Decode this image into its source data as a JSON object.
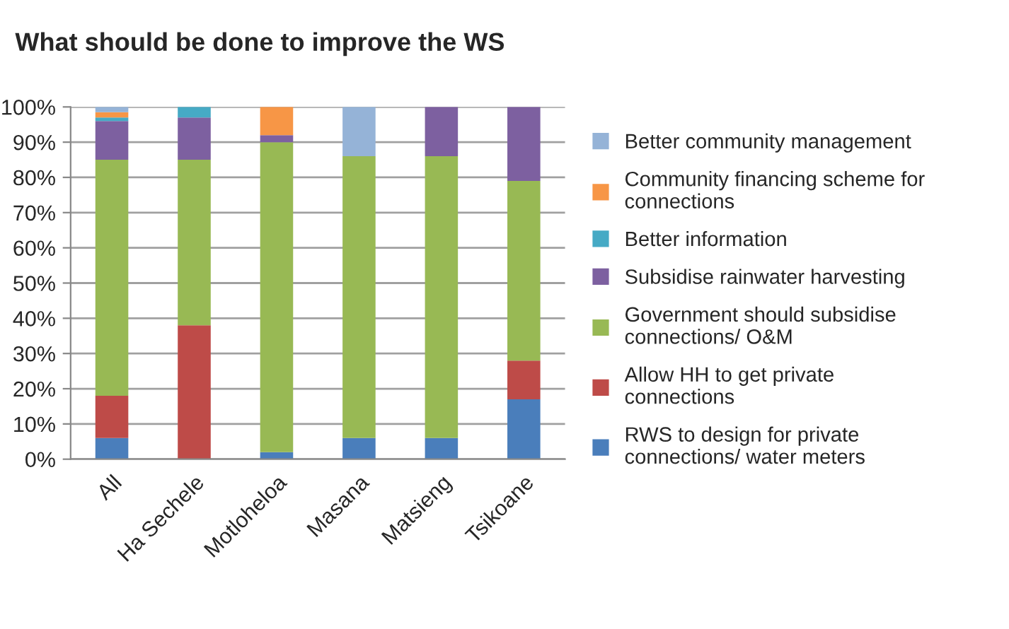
{
  "chart_data": {
    "type": "bar",
    "stacked": true,
    "title": "What should be done to improve the WS",
    "categories": [
      "All",
      "Ha Sechele",
      "Motloheloa",
      "Masana",
      "Matsieng",
      "Tsikoane"
    ],
    "series": [
      {
        "name": "RWS to design for private connections/ water meters",
        "color": "#4a7ebb",
        "values": [
          6,
          0,
          2,
          6,
          6,
          17
        ]
      },
      {
        "name": "Allow HH to get private connections",
        "color": "#be4b48",
        "values": [
          12,
          38,
          0,
          0,
          0,
          11
        ]
      },
      {
        "name": "Government should subsidise connections/ O&M",
        "color": "#98b954",
        "values": [
          67,
          47,
          88,
          80,
          80,
          51
        ]
      },
      {
        "name": "Subsidise rainwater harvesting",
        "color": "#7d60a0",
        "values": [
          11,
          12,
          2,
          0,
          14,
          21
        ]
      },
      {
        "name": "Better information",
        "color": "#46aac5",
        "values": [
          1,
          3,
          0,
          0,
          0,
          0
        ]
      },
      {
        "name": "Community financing scheme for connections",
        "color": "#f79646",
        "values": [
          1.5,
          0,
          8,
          0,
          0,
          0
        ]
      },
      {
        "name": "Better community management",
        "color": "#95b3d7",
        "values": [
          1.5,
          0,
          0,
          14,
          0,
          0
        ]
      }
    ],
    "ylim": [
      0,
      100
    ],
    "yticks": [
      {
        "value": 0,
        "label": "0%"
      },
      {
        "value": 10,
        "label": "10%"
      },
      {
        "value": 20,
        "label": "20%"
      },
      {
        "value": 30,
        "label": "30%"
      },
      {
        "value": 40,
        "label": "40%"
      },
      {
        "value": 50,
        "label": "50%"
      },
      {
        "value": 60,
        "label": "60%"
      },
      {
        "value": 70,
        "label": "70%"
      },
      {
        "value": 80,
        "label": "80%"
      },
      {
        "value": 90,
        "label": "90%"
      },
      {
        "value": 100,
        "label": "100%"
      }
    ],
    "grid": "y",
    "legend": "right"
  }
}
